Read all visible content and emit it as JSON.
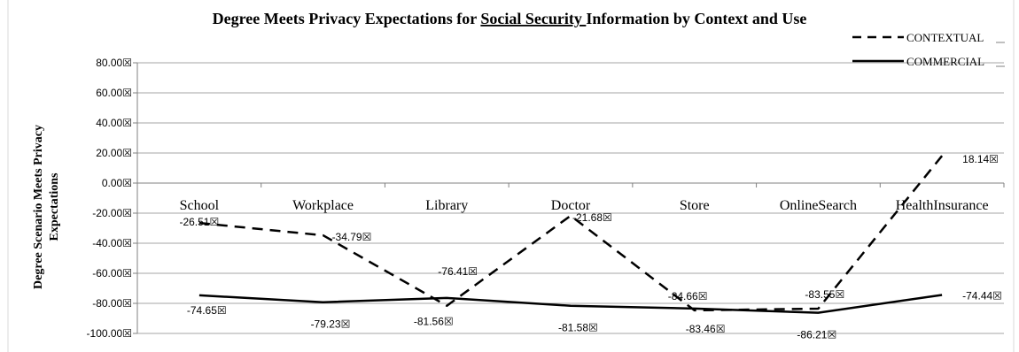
{
  "chart_data": {
    "type": "line",
    "title_parts": {
      "before": "Degree Meets Privacy Expectations for ",
      "underlined": "Social Security ",
      "after": "Information by Context and Use"
    },
    "ylabel_lines": [
      "Degree Scenario Meets Privacy",
      "Expectations"
    ],
    "xlabel": "",
    "categories": [
      "School",
      "Workplace",
      "Library",
      "Doctor",
      "Store",
      "OnlineSearch",
      "HealthInsurance"
    ],
    "ylim": [
      -100,
      80
    ],
    "yticks": [
      80,
      60,
      40,
      20,
      0,
      -20,
      -40,
      -60,
      -80,
      -100
    ],
    "ytick_labels": [
      "80.00☒",
      "60.00☒",
      "40.00☒",
      "20.00☒",
      "0.00☒",
      "-20.00☒",
      "-40.00☒",
      "-60.00☒",
      "-80.00☒",
      "-100.00☒"
    ],
    "grid": true,
    "legend_position": "top-right",
    "series": [
      {
        "name": "CONTEXTUAL",
        "style": "dashed",
        "color": "#000000",
        "values": [
          -26.51,
          -34.79,
          -81.56,
          -21.68,
          -84.66,
          -83.55,
          18.14
        ],
        "labels": [
          "-26.51☒",
          "-34.79☒",
          "-81.56☒",
          "-21.68☒",
          "-84.66☒",
          "-83.55☒",
          "18.14☒"
        ]
      },
      {
        "name": "COMMERCIAL",
        "style": "solid",
        "color": "#000000",
        "values": [
          -74.65,
          -79.23,
          -76.41,
          -81.58,
          -83.46,
          -86.21,
          -74.44
        ],
        "labels": [
          "-74.65☒",
          "-79.23☒",
          "-76.41☒",
          "-81.58☒",
          "-83.46☒",
          "-86.21☒",
          "-74.44☒"
        ]
      }
    ]
  }
}
